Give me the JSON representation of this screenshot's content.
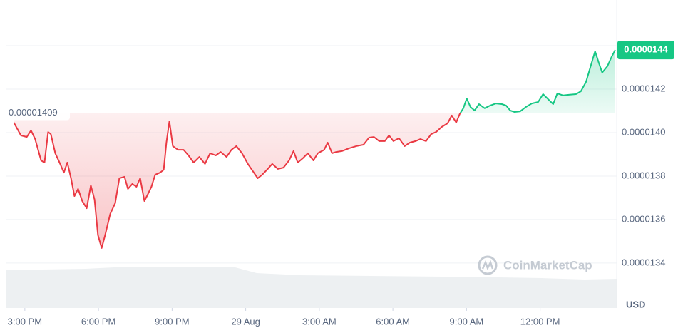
{
  "chart_data": {
    "type": "line",
    "x": [
      -9.45,
      -9.16,
      -8.92,
      -8.75,
      -8.58,
      -8.34,
      -8.2,
      -8.05,
      -7.94,
      -7.76,
      -7.56,
      -7.41,
      -7.27,
      -7.12,
      -6.98,
      -6.83,
      -6.66,
      -6.48,
      -6.31,
      -6.16,
      -6.02,
      -5.87,
      -5.73,
      -5.52,
      -5.32,
      -5.15,
      -4.94,
      -4.8,
      -4.62,
      -4.45,
      -4.3,
      -4.13,
      -3.98,
      -3.84,
      -3.69,
      -3.49,
      -3.34,
      -3.23,
      -3.11,
      -2.97,
      -2.76,
      -2.53,
      -2.33,
      -2.12,
      -1.89,
      -1.66,
      -1.45,
      -1.22,
      -1.02,
      -0.78,
      -0.58,
      -0.38,
      -0.15,
      0.09,
      0.29,
      0.49,
      0.67,
      0.9,
      1.08,
      1.31,
      1.54,
      1.77,
      1.95,
      2.12,
      2.33,
      2.53,
      2.76,
      2.94,
      3.2,
      3.34,
      3.52,
      3.69,
      3.92,
      4.22,
      4.51,
      4.8,
      5.03,
      5.23,
      5.44,
      5.67,
      5.84,
      6.02,
      6.25,
      6.48,
      6.69,
      6.92,
      7.12,
      7.35,
      7.56,
      7.76,
      7.99,
      8.23,
      8.4,
      8.58,
      8.72,
      8.87,
      9.01,
      9.16,
      9.33,
      9.51,
      9.74,
      9.97,
      10.2,
      10.44,
      10.61,
      10.78,
      10.96,
      11.19,
      11.42,
      11.66,
      11.92,
      12.12,
      12.35,
      12.53,
      12.7,
      12.94,
      13.17,
      13.46,
      13.66,
      13.87,
      14.04,
      14.24,
      14.39,
      14.53,
      14.74,
      14.91,
      15.06
    ],
    "values": [
      1.4046e-05,
      1.3987e-05,
      1.398e-05,
      1.401e-05,
      1.397e-05,
      1.3872e-05,
      1.3862e-05,
      1.4003e-05,
      1.3993e-05,
      1.3905e-05,
      1.3856e-05,
      1.3816e-05,
      1.3862e-05,
      1.379e-05,
      1.3708e-05,
      1.3741e-05,
      1.3685e-05,
      1.3652e-05,
      1.3757e-05,
      1.3692e-05,
      1.3528e-05,
      1.3469e-05,
      1.3528e-05,
      1.3626e-05,
      1.3675e-05,
      1.379e-05,
      1.3797e-05,
      1.3741e-05,
      1.3764e-05,
      1.3751e-05,
      1.379e-05,
      1.3685e-05,
      1.3718e-05,
      1.3751e-05,
      1.3806e-05,
      1.3816e-05,
      1.3829e-05,
      1.3954e-05,
      1.4052e-05,
      1.3938e-05,
      1.3921e-05,
      1.3921e-05,
      1.3895e-05,
      1.3862e-05,
      1.3888e-05,
      1.3856e-05,
      1.3905e-05,
      1.3895e-05,
      1.3911e-05,
      1.3888e-05,
      1.3921e-05,
      1.3938e-05,
      1.3905e-05,
      1.3856e-05,
      1.3823e-05,
      1.379e-05,
      1.3806e-05,
      1.3833e-05,
      1.3856e-05,
      1.3833e-05,
      1.3839e-05,
      1.3872e-05,
      1.3915e-05,
      1.3862e-05,
      1.3882e-05,
      1.3905e-05,
      1.3872e-05,
      1.3905e-05,
      1.3921e-05,
      1.3954e-05,
      1.3905e-05,
      1.3911e-05,
      1.3915e-05,
      1.3928e-05,
      1.3938e-05,
      1.3944e-05,
      1.3977e-05,
      1.398e-05,
      1.3961e-05,
      1.3961e-05,
      1.3987e-05,
      1.3961e-05,
      1.3974e-05,
      1.3938e-05,
      1.3954e-05,
      1.3961e-05,
      1.397e-05,
      1.3961e-05,
      1.3993e-05,
      1.4003e-05,
      1.4026e-05,
      1.4043e-05,
      1.4079e-05,
      1.4046e-05,
      1.4085e-05,
      1.4112e-05,
      1.4157e-05,
      1.4118e-05,
      1.4102e-05,
      1.4131e-05,
      1.4112e-05,
      1.4125e-05,
      1.4134e-05,
      1.4131e-05,
      1.4125e-05,
      1.4102e-05,
      1.4095e-05,
      1.4098e-05,
      1.4118e-05,
      1.4134e-05,
      1.4141e-05,
      1.4177e-05,
      1.4151e-05,
      1.4131e-05,
      1.418e-05,
      1.4171e-05,
      1.4174e-05,
      1.4177e-05,
      1.419e-05,
      1.4233e-05,
      1.4298e-05,
      1.4374e-05,
      1.4321e-05,
      1.4276e-05,
      1.4305e-05,
      1.4348e-05,
      1.438e-05
    ],
    "color_up": "#16c784",
    "color_down": "#ea3943",
    "reference_value": 1.409e-05,
    "last_price_label": "0.0000144",
    "xlim": [
      -9.78,
      15.12
    ],
    "xticks": [
      {
        "value": -9,
        "label": "3:00 PM"
      },
      {
        "value": -6,
        "label": "6:00 PM"
      },
      {
        "value": -3,
        "label": "9:00 PM"
      },
      {
        "value": 0,
        "label": "29 Aug"
      },
      {
        "value": 3,
        "label": "3:00 AM"
      },
      {
        "value": 6,
        "label": "6:00 AM"
      },
      {
        "value": 9,
        "label": "9:00 AM"
      },
      {
        "value": 12,
        "label": "12:00 PM"
      }
    ],
    "ylim": [
      1.3193e-05,
      1.461e-05
    ],
    "yticks": [
      {
        "value": 1.34e-05,
        "label": "0.0000134"
      },
      {
        "value": 1.36e-05,
        "label": "0.0000136"
      },
      {
        "value": 1.38e-05,
        "label": "0.0000138"
      },
      {
        "value": 1.4e-05,
        "label": "0.0000140"
      },
      {
        "value": 1.42e-05,
        "label": "0.0000142"
      },
      {
        "value": 1.44e-05,
        "label": "0.0000144"
      }
    ],
    "grid": true,
    "y_unit": "USD",
    "watermark": "CoinMarketCap"
  }
}
